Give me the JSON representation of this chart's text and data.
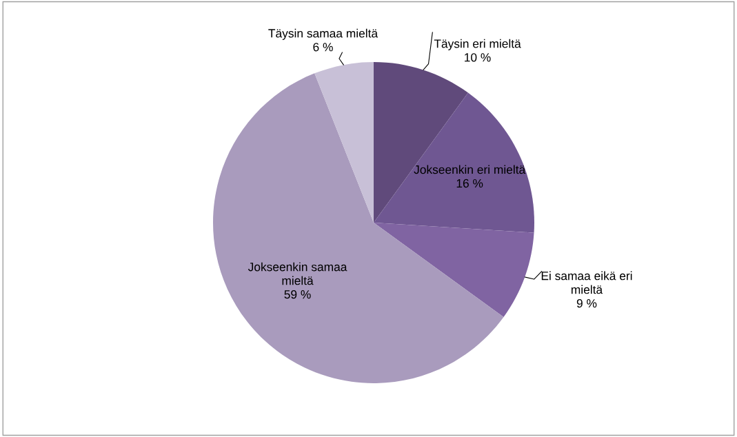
{
  "chart_data": {
    "type": "pie",
    "categories": [
      "Täysin eri mieltä",
      "Jokseenkin eri mieltä",
      "Ei samaa eikä eri mieltä",
      "Jokseenkin samaa mieltä",
      "Täysin samaa mieltä"
    ],
    "values": [
      10,
      16,
      9,
      59,
      6
    ],
    "value_labels": [
      "10 %",
      "16 %",
      "9 %",
      "59 %",
      "6 %"
    ],
    "colors": [
      "#604a7b",
      "#6f5792",
      "#8064a2",
      "#a99bbd",
      "#c8c0d7"
    ],
    "legend": false
  }
}
